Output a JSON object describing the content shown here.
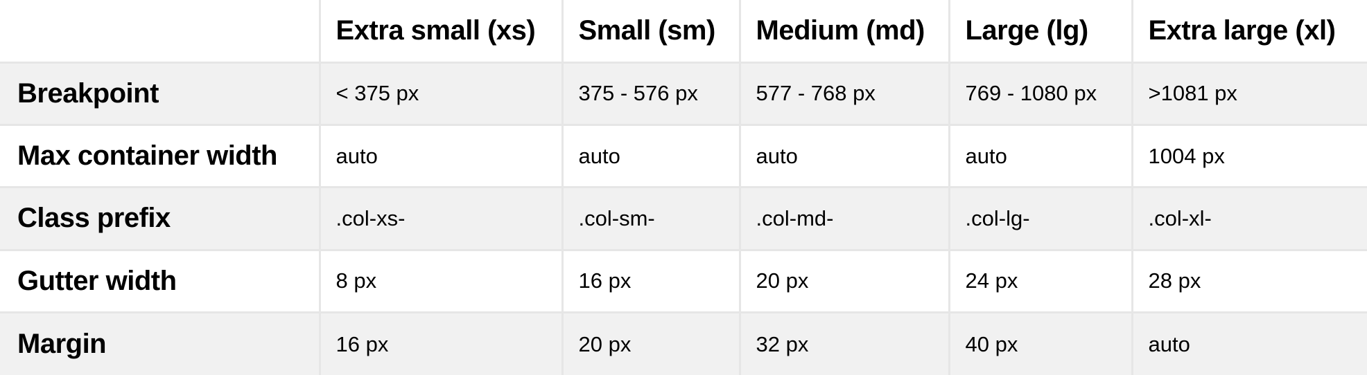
{
  "table": {
    "columns": [
      "Extra small (xs)",
      "Small (sm)",
      "Medium (md)",
      "Large (lg)",
      "Extra large (xl)"
    ],
    "rows": [
      {
        "label": "Breakpoint",
        "cells": [
          "< 375 px",
          "375 - 576 px",
          "577 - 768 px",
          "769 - 1080 px",
          ">1081 px"
        ]
      },
      {
        "label": "Max container width",
        "cells": [
          "auto",
          "auto",
          "auto",
          "auto",
          "1004 px"
        ]
      },
      {
        "label": "Class prefix",
        "cells": [
          ".col-xs-",
          ".col-sm-",
          ".col-md-",
          ".col-lg-",
          ".col-xl-"
        ]
      },
      {
        "label": "Gutter width",
        "cells": [
          "8 px",
          "16 px",
          "20 px",
          "24 px",
          "28 px"
        ]
      },
      {
        "label": "Margin",
        "cells": [
          "16 px",
          "20 px",
          "32 px",
          "40 px",
          "auto"
        ]
      }
    ]
  },
  "colors": {
    "grid_line": "#e6e6e6",
    "stripe": "#f1f1f1",
    "text": "#000000"
  }
}
